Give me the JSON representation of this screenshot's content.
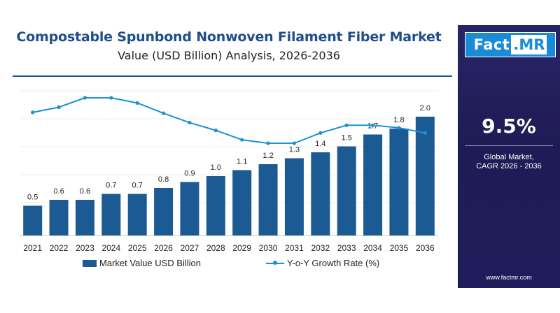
{
  "header": {
    "title": "Compostable Spunbond Nonwoven Filament Fiber Market",
    "subtitle": "Value (USD Billion) Analysis, 2026-2036"
  },
  "side_panel": {
    "logo_left": "Fact",
    "logo_right": ".MR",
    "kpi_value": "9.5%",
    "kpi_label_line1": "Global Market,",
    "kpi_label_line2": "CAGR 2026 - 2036",
    "website": "www.factmr.com"
  },
  "colors": {
    "bar": "#1c5a93",
    "line": "#1b92d1",
    "title": "#1f4e8c",
    "panel": "#231f5e"
  },
  "chart_data": {
    "type": "bar",
    "categories": [
      "2021",
      "2022",
      "2023",
      "2024",
      "2025",
      "2026",
      "2027",
      "2028",
      "2029",
      "2030",
      "2031",
      "2032",
      "2033",
      "2034",
      "2035",
      "2036"
    ],
    "series": [
      {
        "name": "Market Value USD Billion",
        "type": "bar",
        "values": [
          0.5,
          0.6,
          0.6,
          0.7,
          0.7,
          0.8,
          0.9,
          1.0,
          1.1,
          1.2,
          1.3,
          1.4,
          1.5,
          1.7,
          1.8,
          2.0
        ],
        "labels": [
          "0.5",
          "0.6",
          "0.6",
          "0.7",
          "0.7",
          "0.8",
          "0.9",
          "1.0",
          "1.1",
          "1.2",
          "1.3",
          "1.4",
          "1.5",
          "1.7",
          "1.8",
          "2.0"
        ]
      },
      {
        "name": "Y-o-Y Growth Rate (%)",
        "type": "line",
        "values": [
          10.8,
          11.4,
          12.5,
          12.5,
          11.9,
          10.7,
          9.6,
          8.7,
          7.6,
          7.2,
          7.2,
          8.4,
          9.3,
          9.3,
          9.0,
          8.4
        ]
      }
    ],
    "legend_position": "bottom",
    "grid": true
  }
}
